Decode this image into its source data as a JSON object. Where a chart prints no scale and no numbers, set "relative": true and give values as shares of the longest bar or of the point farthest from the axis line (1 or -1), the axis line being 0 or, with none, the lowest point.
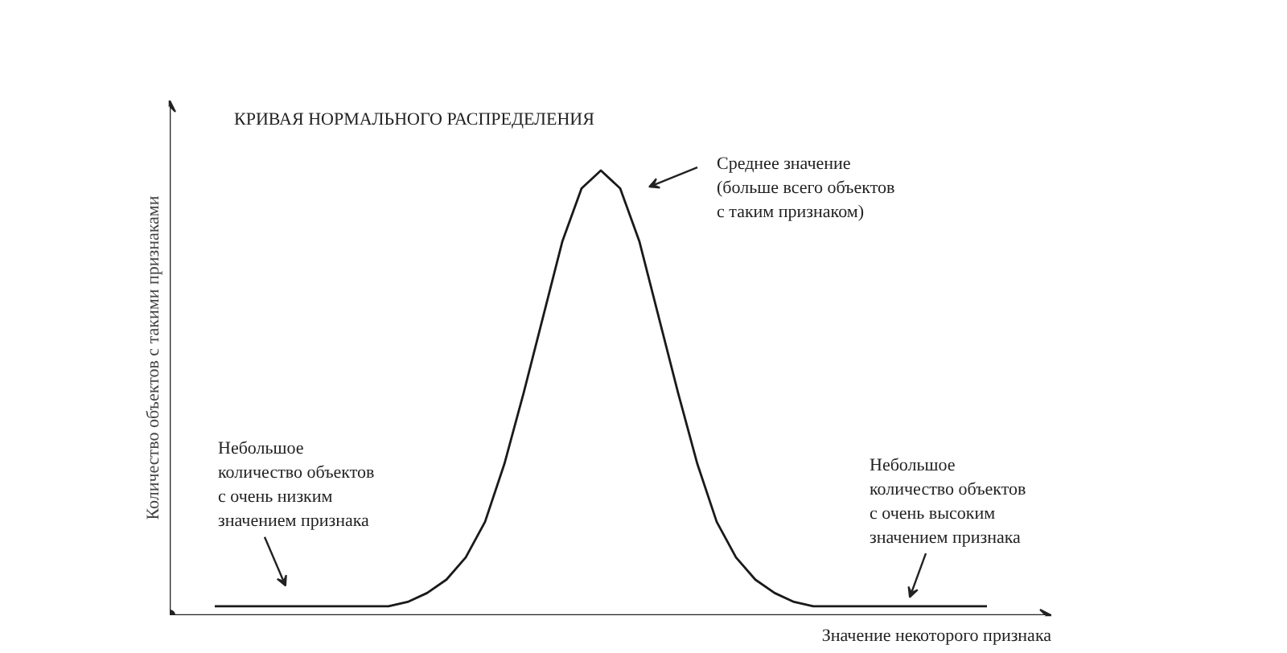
{
  "chart_data": {
    "type": "line",
    "relative": true,
    "title": "КРИВАЯ НОРМАЛЬНОГО РАСПРЕДЕЛЕНИЯ",
    "xlabel": "Значение некоторого признака",
    "ylabel": "Количество объектов с такими признаками",
    "categories": [
      null,
      null,
      null,
      null,
      null,
      null,
      null,
      null,
      null,
      null,
      null,
      null,
      null,
      null,
      null,
      null,
      null,
      null,
      null,
      null,
      null,
      null,
      null,
      null,
      null,
      null,
      null,
      null,
      null,
      null,
      null,
      null,
      null,
      null,
      null,
      null,
      null,
      null,
      null,
      null,
      null
    ],
    "series": [
      {
        "color": "#1a1a1a",
        "values": [
          0.02,
          0.02,
          0.02,
          0.02,
          0.02,
          0.02,
          0.02,
          0.02,
          0.02,
          0.02,
          0.03,
          0.05,
          0.08,
          0.13,
          0.21,
          0.34,
          0.5,
          0.67,
          0.84,
          0.96,
          1,
          0.96,
          0.84,
          0.67,
          0.5,
          0.34,
          0.21,
          0.13,
          0.08,
          0.05,
          0.03,
          0.02,
          0.02,
          0.02,
          0.02,
          0.02,
          0.02,
          0.02,
          0.02,
          0.02,
          0.02
        ]
      }
    ],
    "annotations": [
      "Среднее значение\n(больше всего объектов\nс таким признаком)",
      "Небольшое\nколичество объектов\nс очень низким\nзначением признака",
      "Небольшое\nколичество объектов\nс очень высоким\nзначением признака"
    ],
    "marker": "none",
    "line_style": "solid"
  }
}
